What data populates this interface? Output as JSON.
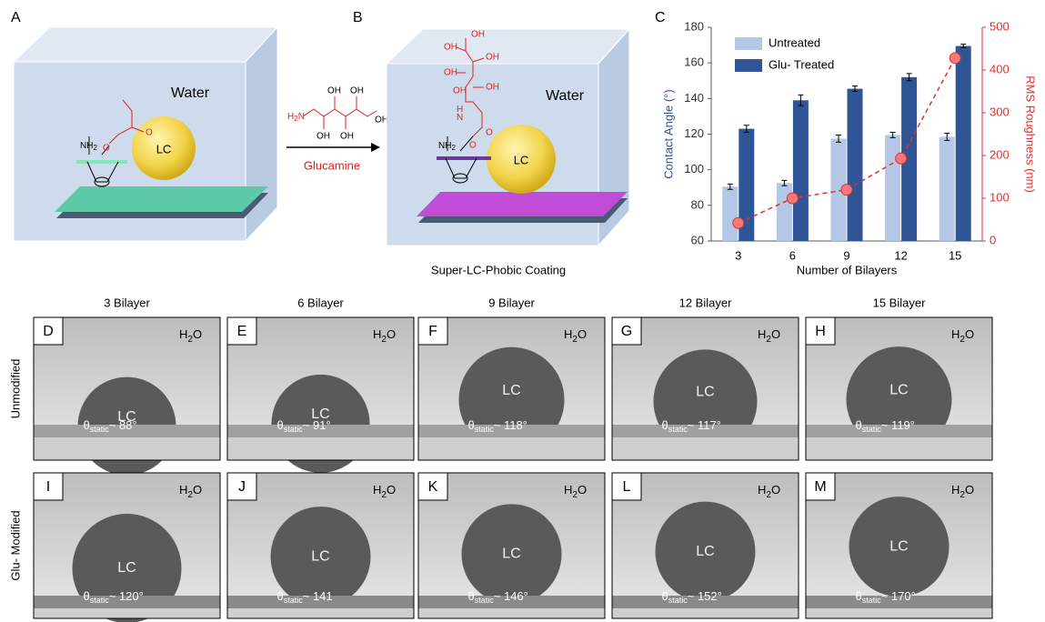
{
  "panel_a": {
    "label": "A",
    "medium": "Water",
    "droplet": "LC",
    "amine": [
      "NH",
      "2"
    ],
    "carbonyl": "O",
    "ester_o": "O"
  },
  "reaction": {
    "reagent": "Glucamine",
    "amine": [
      "H",
      "2",
      "N"
    ],
    "hydroxyls": [
      "OH",
      "OH",
      "OH",
      "OH",
      "OH"
    ]
  },
  "panel_b": {
    "label": "B",
    "medium": "Water",
    "droplet": "LC",
    "amine": [
      "NH",
      "2"
    ],
    "hydroxyls": [
      "OH",
      "OH",
      "OH",
      "OH",
      "OH",
      "OH"
    ],
    "linker": [
      "H",
      "N"
    ],
    "ester_o": "O",
    "carbonyl": "O",
    "caption": "Super-LC-Phobic  Coating"
  },
  "chart_data": {
    "type": "bar",
    "panel_label": "C",
    "x_label": "Number of Bilayers",
    "y_label": "Contact Angle (°)",
    "y2_label": "RMS Roughness (nm)",
    "categories": [
      "3",
      "6",
      "9",
      "12",
      "15"
    ],
    "series": [
      {
        "name": "Untreated",
        "color": "#b4c7e7",
        "values": [
          90.5,
          92.5,
          117.5,
          119.5,
          118.5
        ],
        "errors": [
          1.5,
          1.5,
          2,
          1.5,
          2
        ]
      },
      {
        "name": "Glu- Treated",
        "color": "#2f5597",
        "values": [
          123,
          139,
          145.5,
          152,
          169.5
        ],
        "errors": [
          2,
          3,
          1.5,
          2,
          1
        ]
      },
      {
        "type": "line",
        "axis": "y2",
        "color": "#e03030",
        "values": [
          42,
          100,
          120,
          193,
          428
        ]
      }
    ],
    "ylim": [
      60,
      180
    ],
    "yticks": [
      60,
      80,
      100,
      120,
      140,
      160,
      180
    ],
    "y2lim": [
      0,
      500
    ],
    "y2ticks": [
      0,
      100,
      200,
      300,
      400,
      500
    ],
    "legend": "top-left"
  },
  "droplets": {
    "columns": [
      "3 Bilayer",
      "6 Bilayer",
      "9 Bilayer",
      "12 Bilayer",
      "15 Bilayer"
    ],
    "rows": [
      {
        "label": "Unmodified",
        "panels": [
          {
            "panel": "D",
            "solvent": [
              "H",
              "2",
              "O"
            ],
            "drop": "LC",
            "angle": [
              "θ",
              "static",
              "~ 88°"
            ]
          },
          {
            "panel": "E",
            "solvent": [
              "H",
              "2",
              "O"
            ],
            "drop": "LC",
            "angle": [
              "θ",
              "static",
              "~ 91°"
            ]
          },
          {
            "panel": "F",
            "solvent": [
              "H",
              "2",
              "O"
            ],
            "drop": "LC",
            "angle": [
              "θ",
              "static",
              "~ 118°"
            ]
          },
          {
            "panel": "G",
            "solvent": [
              "H",
              "2",
              "O"
            ],
            "drop": "LC",
            "angle": [
              "θ",
              "static",
              "~ 117°"
            ]
          },
          {
            "panel": "H",
            "solvent": [
              "H",
              "2",
              "O"
            ],
            "drop": "LC",
            "angle": [
              "θ",
              "static",
              "~ 119°"
            ]
          }
        ]
      },
      {
        "label": "Glu- Modified",
        "panels": [
          {
            "panel": "I",
            "solvent": [
              "H",
              "2",
              "O"
            ],
            "drop": "LC",
            "angle": [
              "θ",
              "static",
              "~ 120°"
            ]
          },
          {
            "panel": "J",
            "solvent": [
              "H",
              "2",
              "O"
            ],
            "drop": "LC",
            "angle": [
              "θ",
              "static",
              "~ 141"
            ]
          },
          {
            "panel": "K",
            "solvent": [
              "H",
              "2",
              "O"
            ],
            "drop": "LC",
            "angle": [
              "θ",
              "static",
              "~ 146°"
            ]
          },
          {
            "panel": "L",
            "solvent": [
              "H",
              "2",
              "O"
            ],
            "drop": "LC",
            "angle": [
              "θ",
              "static",
              "~ 152°"
            ]
          },
          {
            "panel": "M",
            "solvent": [
              "H",
              "2",
              "O"
            ],
            "drop": "LC",
            "angle": [
              "θ",
              "static",
              "~ 170°"
            ]
          }
        ]
      }
    ]
  }
}
